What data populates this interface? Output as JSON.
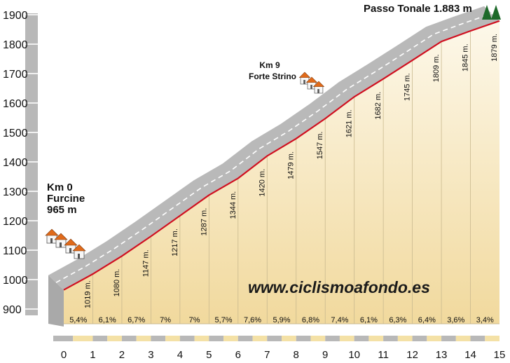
{
  "chart_data": {
    "type": "area",
    "title": "",
    "xlabel": "",
    "ylabel": "",
    "x": [
      0,
      1,
      2,
      3,
      4,
      5,
      6,
      7,
      8,
      9,
      10,
      11,
      12,
      13,
      14,
      15
    ],
    "y": [
      965,
      1019,
      1080,
      1147,
      1217,
      1287,
      1344,
      1420,
      1479,
      1547,
      1621,
      1682,
      1745,
      1809,
      1845,
      1879
    ],
    "xlim": [
      0,
      15
    ],
    "ylim": [
      900,
      1900
    ],
    "x_ticks": [
      "0",
      "1",
      "2",
      "3",
      "4",
      "5",
      "6",
      "7",
      "8",
      "9",
      "10",
      "11",
      "12",
      "13",
      "14",
      "15"
    ],
    "y_ticks": [
      "900",
      "1000",
      "1100",
      "1200",
      "1300",
      "1400",
      "1500",
      "1600",
      "1700",
      "1800",
      "1900"
    ],
    "elevation_labels": [
      "1019 m.",
      "1080 m.",
      "1147 m.",
      "1217 m.",
      "1287 m.",
      "1344 m.",
      "1420 m.",
      "1479 m.",
      "1547 m.",
      "1621 m.",
      "1682 m.",
      "1745 m.",
      "1809 m.",
      "1845 m.",
      "1879 m."
    ],
    "gradients": [
      "5,4%",
      "6,1%",
      "6,7%",
      "7%",
      "7%",
      "5,7%",
      "7,6%",
      "5,9%",
      "6,8%",
      "7,4%",
      "6,1%",
      "6,3%",
      "6,4%",
      "3,6%",
      "3,4%"
    ],
    "annotations": {
      "start": [
        "Km 0",
        "Furcine",
        "965 m"
      ],
      "mid": [
        "Km 9",
        "Forte Strino"
      ],
      "summit": "Passo Tonale 1.883 m"
    },
    "watermark": "www.ciclismoafondo.es",
    "colors": {
      "profile_line": "#d01020",
      "road_band": "#b9b9b9",
      "fill_top": "#fdf8ea",
      "fill_bottom": "#f1d99d",
      "tree": "#1e6a2a",
      "roof": "#e06a1a"
    },
    "grid": false
  }
}
